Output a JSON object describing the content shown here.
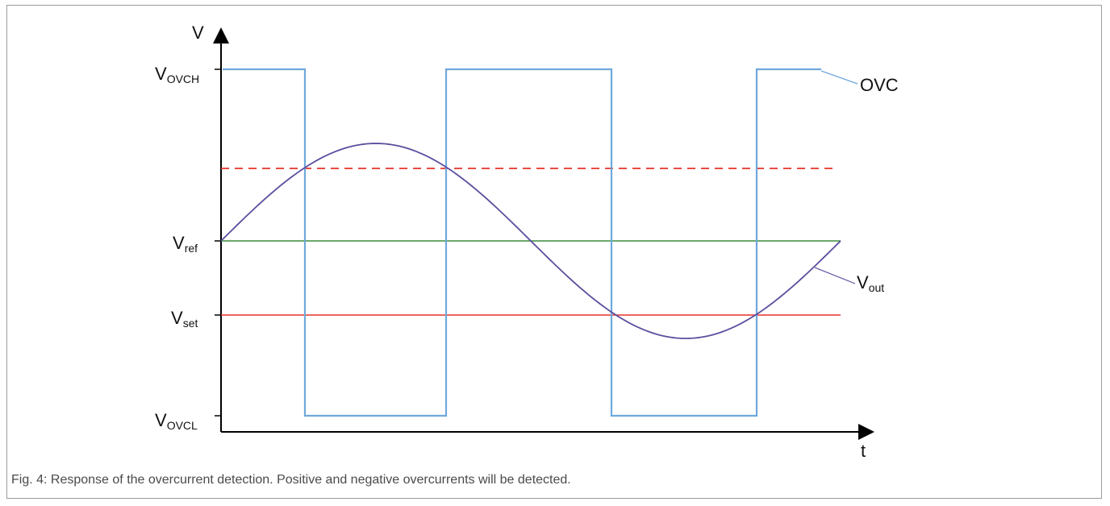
{
  "figure": {
    "axes": {
      "y_label": "V",
      "x_label": "t",
      "y_levels": [
        {
          "key": "ovch",
          "main": "V",
          "sub": "OVCH"
        },
        {
          "key": "ref",
          "main": "V",
          "sub": "ref"
        },
        {
          "key": "set",
          "main": "V",
          "sub": "set"
        },
        {
          "key": "ovcl",
          "main": "V",
          "sub": "OVCL"
        }
      ]
    },
    "signals": {
      "ovc": {
        "label": "OVC",
        "color": "#6fa8dc"
      },
      "vout": {
        "main": "V",
        "sub": "out",
        "color": "#5b4e9e"
      },
      "vref_line": {
        "color": "#3a8a3a"
      },
      "vset_line": {
        "color": "#e8312a"
      },
      "upper_threshold_line": {
        "color": "#e8312a",
        "style": "dashed"
      }
    },
    "caption": "Fig. 4: Response of the overcurrent detection. Positive and negative overcurrents will be detected."
  }
}
